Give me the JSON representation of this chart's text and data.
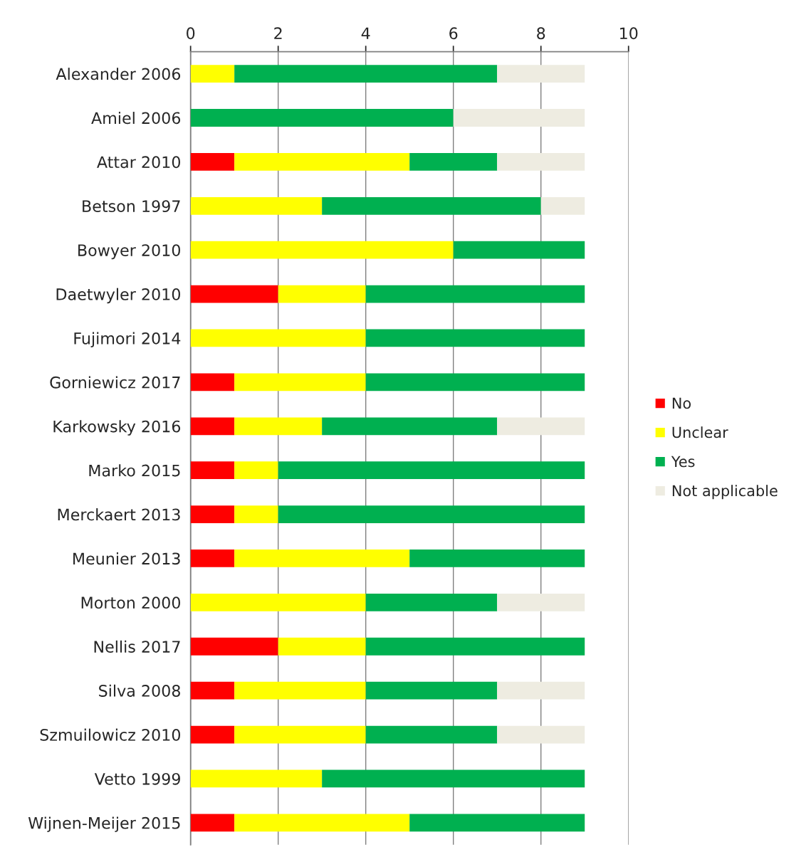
{
  "chart_data": {
    "type": "bar",
    "orientation": "horizontal",
    "stacked": true,
    "categories": [
      "Alexander 2006",
      "Amiel 2006",
      "Attar 2010",
      "Betson 1997",
      "Bowyer 2010",
      "Daetwyler 2010",
      "Fujimori 2014",
      "Gorniewicz 2017",
      "Karkowsky 2016",
      "Marko 2015",
      "Merckaert 2013",
      "Meunier 2013",
      "Morton 2000",
      "Nellis 2017",
      "Silva 2008",
      "Szmuilowicz 2010",
      "Vetto 1999",
      "Wijnen-Meijer 2015"
    ],
    "series": [
      {
        "name": "No",
        "color": "#ff0000",
        "values": [
          0,
          0,
          1,
          0,
          0,
          2,
          0,
          1,
          1,
          1,
          1,
          1,
          0,
          2,
          1,
          1,
          0,
          1
        ]
      },
      {
        "name": "Unclear",
        "color": "#ffff00",
        "values": [
          1,
          0,
          4,
          3,
          6,
          2,
          4,
          3,
          2,
          1,
          1,
          4,
          4,
          2,
          3,
          3,
          3,
          4
        ]
      },
      {
        "name": "Yes",
        "color": "#00b050",
        "values": [
          6,
          6,
          2,
          5,
          3,
          5,
          5,
          5,
          4,
          7,
          7,
          4,
          3,
          5,
          3,
          3,
          6,
          4
        ]
      },
      {
        "name": "Not applicable",
        "color": "#eeece1",
        "values": [
          2,
          3,
          2,
          1,
          0,
          0,
          0,
          0,
          2,
          0,
          0,
          0,
          2,
          0,
          2,
          2,
          0,
          0
        ]
      }
    ],
    "xlim": [
      0,
      10
    ],
    "xticks": [
      0,
      2,
      4,
      6,
      8,
      10
    ],
    "grid": "x",
    "legend": "right"
  }
}
